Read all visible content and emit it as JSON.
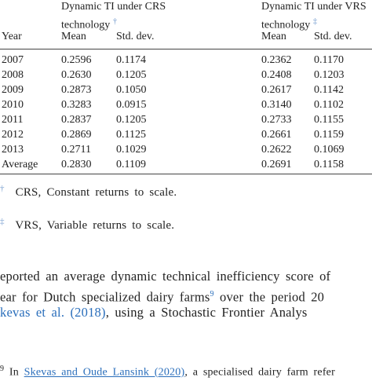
{
  "table": {
    "group_headers": [
      {
        "text": "Dynamic TI under CRS technology",
        "mark": "†"
      },
      {
        "text": "Dynamic TI under VRS technology",
        "mark": "‡"
      }
    ],
    "columns": [
      "Year",
      "Mean",
      "Std. dev.",
      "Mean",
      "Std. dev."
    ],
    "rows": [
      [
        "2007",
        "0.2596",
        "0.1174",
        "0.2362",
        "0.1170"
      ],
      [
        "2008",
        "0.2630",
        "0.1205",
        "0.2408",
        "0.1203"
      ],
      [
        "2009",
        "0.2873",
        "0.1050",
        "0.2617",
        "0.1142"
      ],
      [
        "2010",
        "0.3283",
        "0.0915",
        "0.3140",
        "0.1102"
      ],
      [
        "2011",
        "0.2837",
        "0.1205",
        "0.2733",
        "0.1155"
      ],
      [
        "2012",
        "0.2869",
        "0.1125",
        "0.2661",
        "0.1159"
      ],
      [
        "2013",
        "0.2711",
        "0.1029",
        "0.2622",
        "0.1069"
      ],
      [
        "Average",
        "0.2830",
        "0.1109",
        "0.2691",
        "0.1158"
      ]
    ]
  },
  "footnotes": [
    {
      "mark": "†",
      "text": "CRS, Constant returns to scale."
    },
    {
      "mark": "‡",
      "text": "VRS, Variable returns to scale."
    }
  ],
  "paragraph": {
    "line1": "eported an average dynamic technical inefficiency score of",
    "line2": {
      "before": "ear for Dutch specialized dairy farms",
      "note": "9",
      "after": " over the period 20"
    },
    "line3": {
      "link": "kevas et al. (2018)",
      "after": ", using a Stochastic Frontier Analys"
    }
  },
  "page_footnote": {
    "mark": "9",
    "before": "In ",
    "link": "Skevas and Oude Lansink (2020)",
    "after": ", a specialised dairy farm refer"
  }
}
